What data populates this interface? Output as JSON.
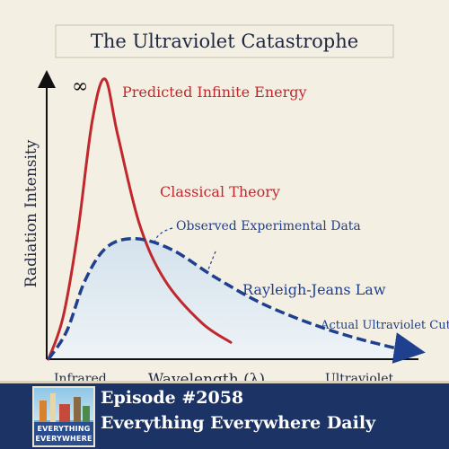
{
  "chart_data": {
    "type": "line",
    "title": "The Ultraviolet Catastrophe",
    "xlabel": "Wavelength (λ)",
    "ylabel": "Radiation Intensity",
    "x_tick_labels": [
      "Infrared",
      "Ultraviolet"
    ],
    "grid": false,
    "curves": [
      {
        "label": "Classical Theory",
        "style": "solid",
        "color": "#c0282e",
        "points": [
          [
            0.0,
            0.0
          ],
          [
            0.04,
            0.15
          ],
          [
            0.08,
            0.45
          ],
          [
            0.12,
            0.85
          ],
          [
            0.155,
            1.0
          ],
          [
            0.19,
            0.8
          ],
          [
            0.25,
            0.48
          ],
          [
            0.32,
            0.28
          ],
          [
            0.42,
            0.13
          ],
          [
            0.5,
            0.06
          ]
        ]
      },
      {
        "label": "Rayleigh-Jeans Law",
        "style": "dashed",
        "color": "#1f3f8f",
        "points": [
          [
            0.0,
            0.0
          ],
          [
            0.05,
            0.1
          ],
          [
            0.1,
            0.28
          ],
          [
            0.16,
            0.4
          ],
          [
            0.24,
            0.43
          ],
          [
            0.34,
            0.39
          ],
          [
            0.46,
            0.29
          ],
          [
            0.6,
            0.19
          ],
          [
            0.78,
            0.1
          ],
          [
            0.95,
            0.04
          ],
          [
            1.0,
            0.03
          ]
        ]
      }
    ],
    "annotations": [
      "∞",
      "Predicted Infinite Energy",
      "Observed Experimental Data",
      "Actual Ultraviolet Cutoff"
    ]
  },
  "banner": {
    "logo_line1": "EVERYTHING",
    "logo_line2": "EVERYWHERE",
    "episode": "Episode #2058",
    "show": "Everything Everywhere Daily"
  },
  "colors": {
    "background": "#f4efe3",
    "classical": "#c0282e",
    "experimental": "#1f3f8f",
    "banner": "#1c3366"
  }
}
